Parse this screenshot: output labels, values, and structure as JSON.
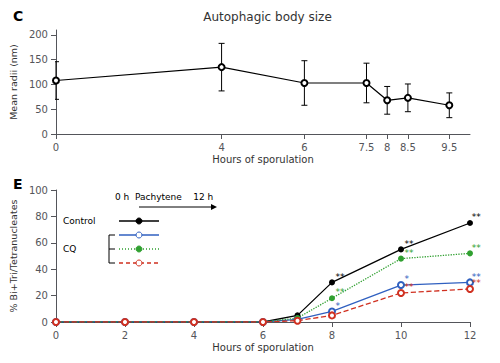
{
  "chart_data": [
    {
      "type": "line",
      "panel_label": "C",
      "title": "Autophagic body size",
      "xlabel": "Hours of sporulation",
      "ylabel": "Mean radii (nm)",
      "x": [
        0,
        4,
        6,
        7.5,
        8,
        8.5,
        9.5
      ],
      "values": [
        108,
        135,
        103,
        103,
        68,
        73,
        58
      ],
      "yerr": [
        38,
        48,
        45,
        40,
        28,
        28,
        25
      ],
      "color": "#000000",
      "marker": "open_circle",
      "line_style": "solid",
      "xlim": [
        0,
        10
      ],
      "xticks": [
        0,
        4,
        6,
        7.5,
        8,
        8.5,
        9.5
      ],
      "ylim": [
        0,
        210
      ],
      "yticks": [
        0,
        50,
        100,
        150,
        200
      ],
      "grid": false
    },
    {
      "type": "line",
      "panel_label": "E",
      "xlabel": "Hours of sporulation",
      "ylabel": "% Bi+Tri/Tetranucleates",
      "x": [
        0,
        2,
        4,
        6,
        7,
        8,
        10,
        12
      ],
      "xlim": [
        0,
        12
      ],
      "xticks": [
        0,
        2,
        4,
        6,
        8,
        10,
        12
      ],
      "ylim": [
        0,
        100
      ],
      "yticks": [
        0,
        20,
        40,
        60,
        80,
        100
      ],
      "grid": false,
      "legend": "upper left",
      "legend_header": "0 h  Pachytene    12 h",
      "series": [
        {
          "name": "Control",
          "color": "#000000",
          "marker": "filled_circle",
          "line_style": "solid",
          "values": [
            0,
            0,
            0,
            0,
            5,
            30,
            55,
            75
          ]
        },
        {
          "group": "CQ",
          "color": "#3060c0",
          "marker": "open_circle",
          "line_style": "solid",
          "values": [
            0,
            0,
            0,
            0,
            2,
            8,
            28,
            30
          ]
        },
        {
          "group": "CQ",
          "color": "#30a030",
          "marker": "filled_circle",
          "line_style": "dotted",
          "values": [
            0,
            0,
            0,
            0,
            3,
            18,
            48,
            52
          ]
        },
        {
          "group": "CQ",
          "color": "#d03020",
          "marker": "open_circle",
          "line_style": "dashed",
          "values": [
            0,
            0,
            0,
            0,
            1,
            5,
            22,
            25
          ]
        }
      ],
      "annotations": [
        {
          "text": "**",
          "x": 8.1,
          "y": 31,
          "color": "#000000"
        },
        {
          "text": "**",
          "x": 10.1,
          "y": 56,
          "color": "#000000"
        },
        {
          "text": "**",
          "x": 12.05,
          "y": 76,
          "color": "#000000"
        },
        {
          "text": "**",
          "x": 8.1,
          "y": 19,
          "color": "#30a030"
        },
        {
          "text": "**",
          "x": 10.1,
          "y": 49,
          "color": "#30a030"
        },
        {
          "text": "**",
          "x": 12.05,
          "y": 53,
          "color": "#30a030"
        },
        {
          "text": "*",
          "x": 8.1,
          "y": 9,
          "color": "#3060c0"
        },
        {
          "text": "*",
          "x": 10.1,
          "y": 29,
          "color": "#3060c0"
        },
        {
          "text": "**",
          "x": 12.05,
          "y": 31,
          "color": "#3060c0"
        },
        {
          "text": "**",
          "x": 10.1,
          "y": 23,
          "color": "#d03020"
        },
        {
          "text": "**",
          "x": 12.05,
          "y": 26,
          "color": "#d03020"
        }
      ]
    }
  ]
}
